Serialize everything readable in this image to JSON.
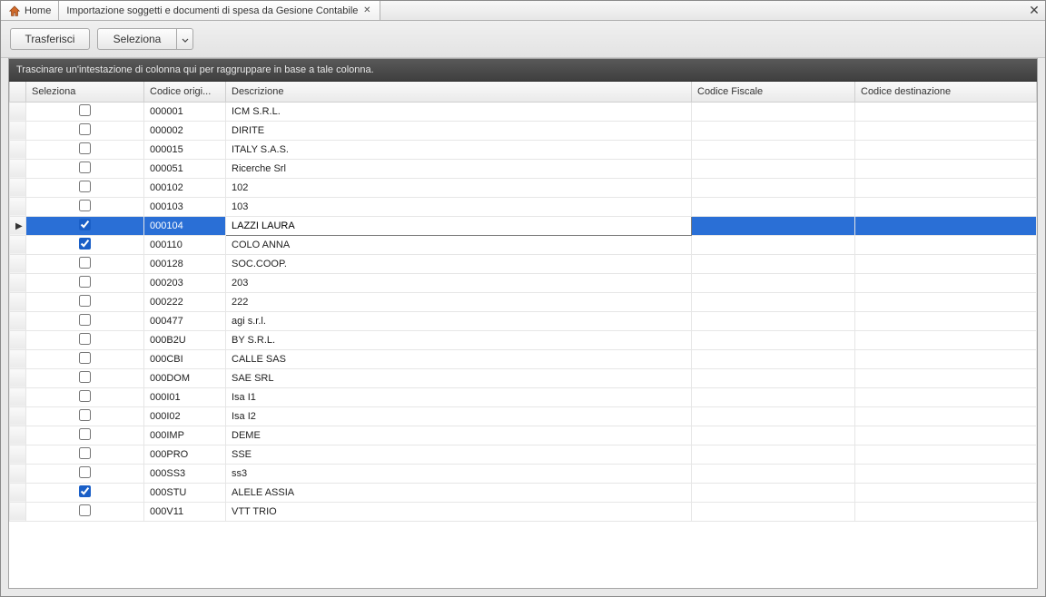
{
  "tabs": {
    "home_label": "Home",
    "doc_label": "Importazione soggetti e documenti di spesa da Gesione Contabile"
  },
  "toolbar": {
    "transfer_label": "Trasferisci",
    "select_label": "Seleziona"
  },
  "grid": {
    "group_hint": "Trascinare un'intestazione di colonna qui per raggruppare in base a tale colonna.",
    "columns": {
      "seleziona": "Seleziona",
      "codice_origine": "Codice origi...",
      "descrizione": "Descrizione",
      "codice_fiscale": "Codice Fiscale",
      "codice_destinazione": "Codice destinazione"
    },
    "selected_index": 6,
    "rows": [
      {
        "checked": false,
        "cod": "000001",
        "desc": "ICM S.R.L.",
        "fisc": "",
        "dest": ""
      },
      {
        "checked": false,
        "cod": "000002",
        "desc": "DIRITE",
        "fisc": "",
        "dest": ""
      },
      {
        "checked": false,
        "cod": "000015",
        "desc": "ITALY S.A.S.",
        "fisc": "",
        "dest": ""
      },
      {
        "checked": false,
        "cod": "000051",
        "desc": "Ricerche Srl",
        "fisc": "",
        "dest": ""
      },
      {
        "checked": false,
        "cod": "000102",
        "desc": "102",
        "fisc": "",
        "dest": ""
      },
      {
        "checked": false,
        "cod": "000103",
        "desc": "103",
        "fisc": "",
        "dest": ""
      },
      {
        "checked": true,
        "cod": "000104",
        "desc": "LAZZI LAURA",
        "fisc": "",
        "dest": ""
      },
      {
        "checked": true,
        "cod": "000110",
        "desc": "COLO ANNA",
        "fisc": "",
        "dest": ""
      },
      {
        "checked": false,
        "cod": "000128",
        "desc": "SOC.COOP.",
        "fisc": "",
        "dest": ""
      },
      {
        "checked": false,
        "cod": "000203",
        "desc": "203",
        "fisc": "",
        "dest": ""
      },
      {
        "checked": false,
        "cod": "000222",
        "desc": "222",
        "fisc": "",
        "dest": ""
      },
      {
        "checked": false,
        "cod": "000477",
        "desc": "agi s.r.l.",
        "fisc": "",
        "dest": ""
      },
      {
        "checked": false,
        "cod": "000B2U",
        "desc": "BY S.R.L.",
        "fisc": "",
        "dest": ""
      },
      {
        "checked": false,
        "cod": "000CBI",
        "desc": "CALLE  SAS",
        "fisc": "",
        "dest": ""
      },
      {
        "checked": false,
        "cod": "000DOM",
        "desc": "SAE SRL",
        "fisc": "",
        "dest": ""
      },
      {
        "checked": false,
        "cod": "000I01",
        "desc": "Isa I1",
        "fisc": "",
        "dest": ""
      },
      {
        "checked": false,
        "cod": "000I02",
        "desc": "Isa I2",
        "fisc": "",
        "dest": ""
      },
      {
        "checked": false,
        "cod": "000IMP",
        "desc": "DEME",
        "fisc": "",
        "dest": ""
      },
      {
        "checked": false,
        "cod": "000PRO",
        "desc": " SSE",
        "fisc": "",
        "dest": ""
      },
      {
        "checked": false,
        "cod": "000SS3",
        "desc": "ss3",
        "fisc": "",
        "dest": ""
      },
      {
        "checked": true,
        "cod": "000STU",
        "desc": "ALELE ASSIA",
        "fisc": "",
        "dest": ""
      },
      {
        "checked": false,
        "cod": "000V11",
        "desc": "VTT TRIO",
        "fisc": "",
        "dest": ""
      }
    ]
  },
  "colors": {
    "selected_row": "#2a6fd6",
    "header_bg_top": "#fafafa",
    "header_bg_bottom": "#eaeaea",
    "group_bar_top": "#595959",
    "group_bar_bottom": "#3f3f3f"
  }
}
